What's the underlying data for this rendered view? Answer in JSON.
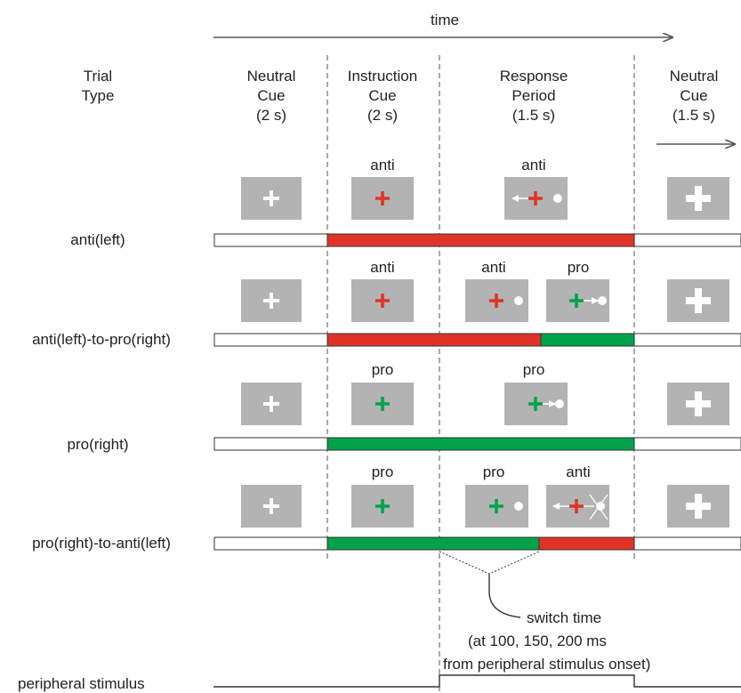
{
  "time_label": "time",
  "headers": {
    "trial_type": [
      "Trial",
      "Type"
    ],
    "neutral_cue_1": [
      "Neutral",
      "Cue",
      "(2 s)"
    ],
    "instruction_cue": [
      "Instruction",
      "Cue",
      "(2 s)"
    ],
    "response_period": [
      "Response",
      "Period",
      "(1.5 s)"
    ],
    "neutral_cue_2": [
      "Neutral",
      "Cue",
      "(1.5 s)"
    ]
  },
  "rows": [
    {
      "label": "anti(left)",
      "instruction_label": "anti",
      "response_labels": [
        "anti"
      ]
    },
    {
      "label": "anti(left)-to-pro(right)",
      "instruction_label": "anti",
      "response_labels": [
        "anti",
        "pro"
      ]
    },
    {
      "label": "pro(right)",
      "instruction_label": "pro",
      "response_labels": [
        "pro"
      ]
    },
    {
      "label": "pro(right)-to-anti(left)",
      "instruction_label": "pro",
      "response_labels": [
        "pro",
        "anti"
      ]
    }
  ],
  "switch_note": [
    "switch time",
    "(at 100, 150, 200 ms",
    "from peripheral stimulus onset)"
  ],
  "peripheral_label": "peripheral stimulus",
  "colors": {
    "anti": "#e03327",
    "pro": "#00a24a",
    "box": "#b3b3b3",
    "dash": "#555555",
    "bar_outline": "#333333"
  }
}
